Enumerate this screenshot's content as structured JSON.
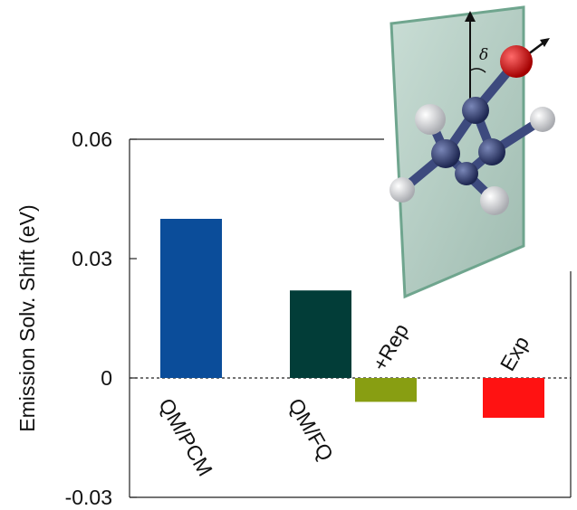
{
  "chart_data": {
    "type": "bar",
    "ylabel": "Emission Solv. Shift (eV)",
    "ylim": [
      -0.03,
      0.06
    ],
    "yticks": [
      {
        "value": 0.06,
        "label": "0.06"
      },
      {
        "value": 0.03,
        "label": "0.03"
      },
      {
        "value": 0,
        "label": "0"
      },
      {
        "value": -0.03,
        "label": "-0.03"
      }
    ],
    "zero_line": "dashed",
    "bars": [
      {
        "label": "QM/PCM",
        "value": 0.04,
        "color": "#0b4d9a",
        "label_position": "below-axis"
      },
      {
        "label": "QM/FQ",
        "value": 0.022,
        "color": "#023d38",
        "label_position": "below-axis"
      },
      {
        "label": "+Rep",
        "value": -0.006,
        "color": "#889e12",
        "label_position": "above-axis"
      },
      {
        "label": "Exp",
        "value": -0.01,
        "color": "#ff1212",
        "label_position": "above-axis"
      }
    ]
  },
  "inset": {
    "angle_symbol": "δ",
    "description_icon": "molecule-with-plane-icon"
  }
}
